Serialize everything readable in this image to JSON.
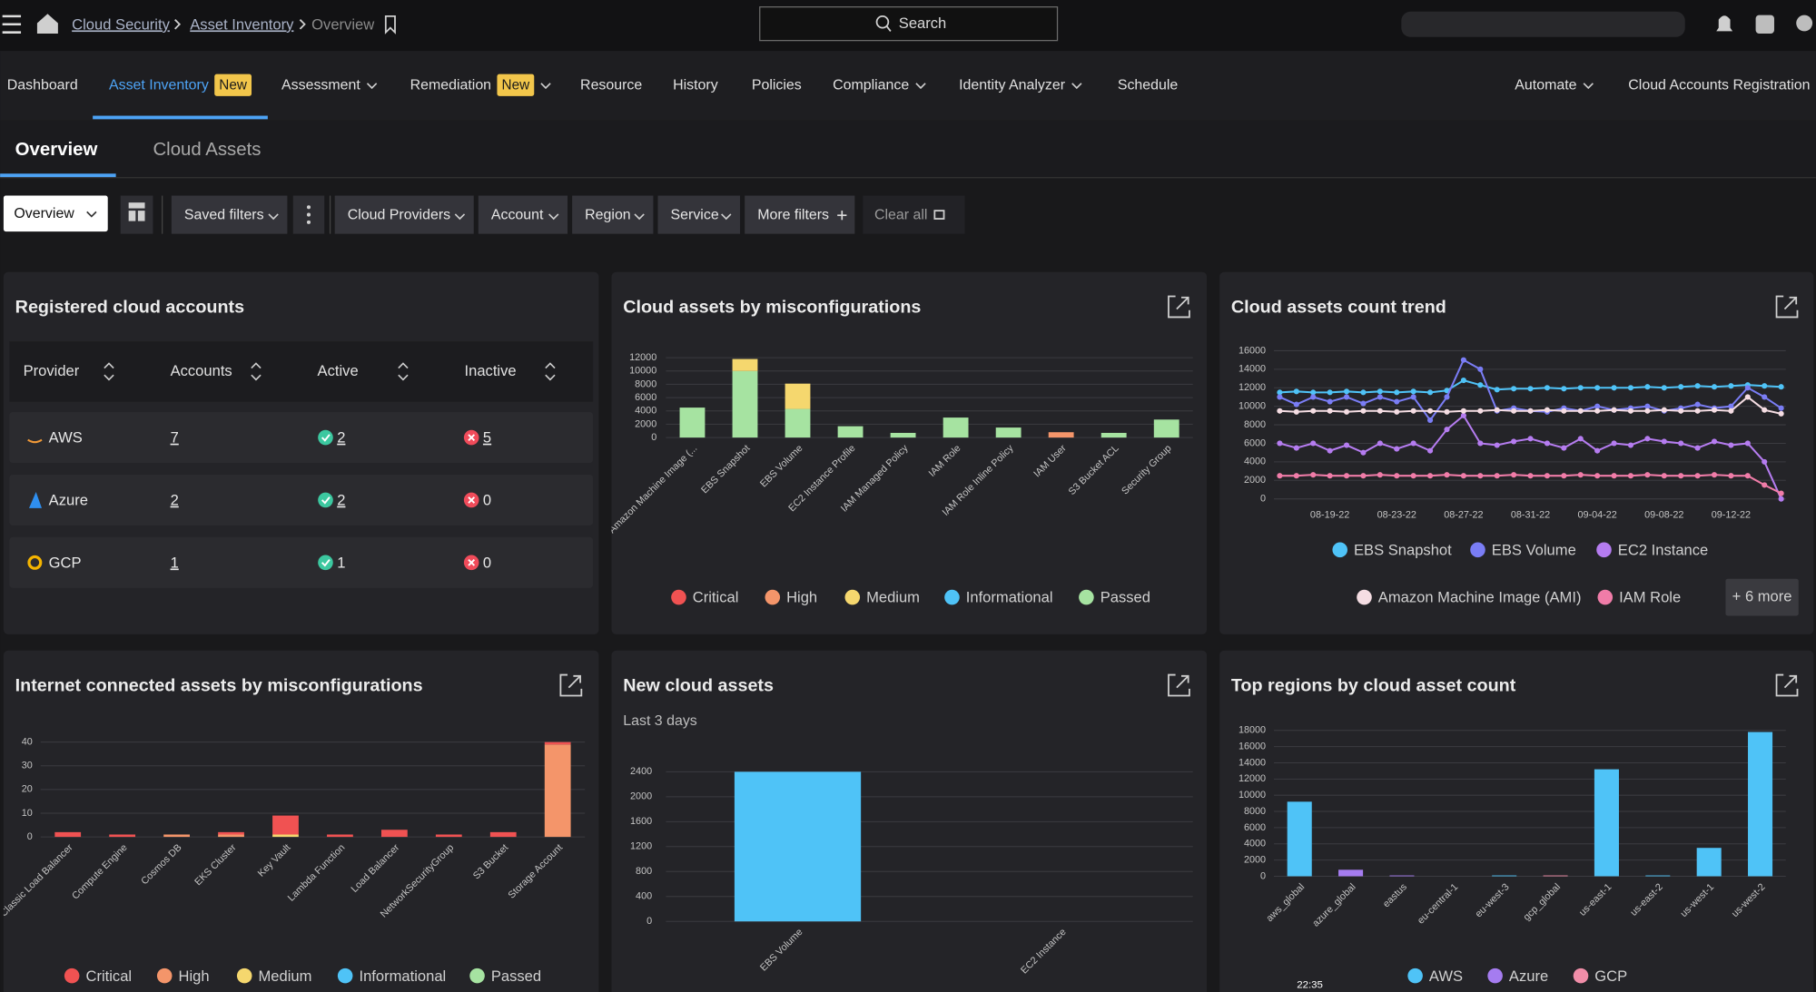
{
  "header": {
    "breadcrumb": [
      "Cloud Security",
      "Asset Inventory",
      "Overview"
    ],
    "search": "Search",
    "clock": "22:35"
  },
  "nav": {
    "items": [
      {
        "label": "Dashboard"
      },
      {
        "label": "Asset Inventory",
        "badge": "New",
        "active": true
      },
      {
        "label": "Assessment",
        "dropdown": true
      },
      {
        "label": "Remediation",
        "dropdown": true,
        "badge": "New"
      },
      {
        "label": "Resource"
      },
      {
        "label": "History"
      },
      {
        "label": "Policies"
      },
      {
        "label": "Compliance",
        "dropdown": true
      },
      {
        "label": "Identity Analyzer",
        "dropdown": true
      },
      {
        "label": "Schedule"
      },
      {
        "label": "Automate",
        "dropdown": true
      },
      {
        "label": "Cloud Accounts Registration"
      }
    ]
  },
  "subtabs": {
    "items": [
      "Overview",
      "Cloud Assets"
    ],
    "active": 0
  },
  "filters": {
    "view": "Overview",
    "items": [
      "Saved filters",
      "Cloud Providers",
      "Account",
      "Region",
      "Service",
      "More filters"
    ],
    "clear": "Clear all"
  },
  "accounts": {
    "title": "Registered cloud accounts",
    "columns": [
      "Provider",
      "Accounts",
      "Active",
      "Inactive"
    ],
    "rows": [
      [
        "AWS",
        7,
        2,
        5
      ],
      [
        "Azure",
        2,
        2,
        0
      ],
      [
        "GCP",
        1,
        1,
        0
      ]
    ]
  },
  "chart_data": [
    {
      "type": "bar",
      "stacked": true,
      "grid": true,
      "title": "Cloud assets by misconfigurations",
      "categories": [
        "Amazon Machine Image (...",
        "EBS Snapshot",
        "EBS Volume",
        "EC2 Instance Profile",
        "IAM Managed Policy",
        "IAM Role",
        "IAM Role Inline Policy",
        "IAM User",
        "S3 Bucket ACL",
        "Security Group"
      ],
      "ylim": [
        0,
        12000
      ],
      "yticks": [
        0,
        2000,
        4000,
        6000,
        8000,
        10000,
        12000
      ],
      "series": [
        {
          "name": "Critical",
          "color": "#f05252",
          "values": [
            0,
            0,
            0,
            0,
            0,
            0,
            0,
            0,
            0,
            0
          ]
        },
        {
          "name": "High",
          "color": "#f4956a",
          "values": [
            0,
            0,
            0,
            0,
            0,
            0,
            0,
            800,
            0,
            0
          ]
        },
        {
          "name": "Medium",
          "color": "#f5d76e",
          "values": [
            0,
            1800,
            3800,
            0,
            0,
            0,
            0,
            0,
            0,
            0
          ]
        },
        {
          "name": "Informational",
          "color": "#4fc3f7",
          "values": [
            0,
            0,
            0,
            0,
            0,
            0,
            0,
            0,
            0,
            0
          ]
        },
        {
          "name": "Passed",
          "color": "#a6e3a1",
          "values": [
            4500,
            10000,
            4300,
            1700,
            700,
            3000,
            1500,
            0,
            700,
            2700
          ]
        }
      ]
    },
    {
      "type": "line",
      "grid": true,
      "title": "Cloud assets count trend",
      "more_label": "+ 6 more",
      "categories": [
        null,
        null,
        null,
        "08-19-22",
        null,
        null,
        null,
        "08-23-22",
        null,
        null,
        null,
        "08-27-22",
        null,
        null,
        null,
        "08-31-22",
        null,
        null,
        null,
        "09-04-22",
        null,
        null,
        null,
        "09-08-22",
        null,
        null,
        null,
        "09-12-22",
        null,
        null,
        null
      ],
      "ylim": [
        0,
        16000
      ],
      "yticks": [
        0,
        2000,
        4000,
        6000,
        8000,
        10000,
        12000,
        14000,
        16000
      ],
      "series": [
        {
          "name": "EBS Snapshot",
          "color": "#4fc3f7",
          "values": [
            11500,
            11600,
            11500,
            11500,
            11600,
            11500,
            11600,
            11500,
            11600,
            11500,
            11700,
            12800,
            12300,
            11800,
            11900,
            11900,
            12000,
            11900,
            12000,
            12000,
            12000,
            12000,
            12100,
            12000,
            12100,
            12200,
            12100,
            12200,
            12300,
            12200,
            12100
          ]
        },
        {
          "name": "EBS Volume",
          "color": "#7a7df5",
          "values": [
            11000,
            10200,
            11000,
            10500,
            11000,
            10300,
            11000,
            10500,
            11000,
            8500,
            11000,
            15000,
            14000,
            9500,
            9800,
            9500,
            9400,
            9800,
            9500,
            10000,
            9600,
            9800,
            10000,
            9500,
            9800,
            10200,
            9800,
            10000,
            12000,
            11000,
            9800
          ]
        },
        {
          "name": "EC2 Instance",
          "color": "#b57cf0",
          "values": [
            6000,
            5500,
            6000,
            5200,
            5800,
            5000,
            6000,
            5400,
            6000,
            5200,
            7500,
            9000,
            6000,
            5800,
            6200,
            6500,
            6000,
            5500,
            6500,
            5200,
            6000,
            5800,
            6500,
            6200,
            6000,
            5500,
            6200,
            5800,
            6000,
            4000,
            0
          ]
        },
        {
          "name": "Amazon Machine Image (AMI)",
          "color": "#f5dde3",
          "values": [
            9500,
            9400,
            9500,
            9500,
            9400,
            9500,
            9500,
            9400,
            9500,
            9500,
            9400,
            9500,
            9500,
            9600,
            9500,
            9500,
            9600,
            9500,
            9500,
            9500,
            9600,
            9500,
            9500,
            9600,
            9500,
            9500,
            9600,
            9500,
            11000,
            9600,
            9200
          ]
        },
        {
          "name": "IAM Role",
          "color": "#f07ca8",
          "values": [
            2500,
            2500,
            2600,
            2500,
            2500,
            2500,
            2600,
            2500,
            2500,
            2500,
            2600,
            2500,
            2500,
            2500,
            2600,
            2500,
            2500,
            2500,
            2600,
            2500,
            2500,
            2500,
            2600,
            2500,
            2500,
            2500,
            2600,
            2500,
            2500,
            1500,
            600
          ]
        }
      ]
    },
    {
      "type": "bar",
      "stacked": true,
      "grid": true,
      "title": "Internet connected assets by misconfigurations",
      "categories": [
        "Classic Load Balancer",
        "Compute Engine",
        "Cosmos DB",
        "EKS Cluster",
        "Key Vault",
        "Lambda Function",
        "Load Balancer",
        "NetworkSecurityGroup",
        "S3 Bucket",
        "Storage Account"
      ],
      "ylim": [
        0,
        42
      ],
      "yticks": [
        0,
        10,
        20,
        30,
        40
      ],
      "series": [
        {
          "name": "Critical",
          "color": "#f05252",
          "values": [
            2,
            1,
            0,
            1,
            8,
            1,
            3,
            1,
            2,
            1
          ]
        },
        {
          "name": "High",
          "color": "#f4956a",
          "values": [
            0,
            0,
            1,
            1,
            0,
            0,
            0,
            0,
            0,
            39
          ]
        },
        {
          "name": "Medium",
          "color": "#f5d76e",
          "values": [
            0,
            0,
            0,
            0,
            1,
            0,
            0,
            0,
            0,
            0
          ]
        },
        {
          "name": "Informational",
          "color": "#4fc3f7",
          "values": [
            0,
            0,
            0,
            0,
            0,
            0,
            0,
            0,
            0,
            0
          ]
        },
        {
          "name": "Passed",
          "color": "#a6e3a1",
          "values": [
            0,
            0,
            0,
            0,
            0,
            0,
            0,
            0,
            0,
            0
          ]
        }
      ]
    },
    {
      "type": "bar",
      "stacked": false,
      "grid": true,
      "title": "New cloud assets",
      "subtitle": "Last 3 days",
      "categories": [
        "EBS Volume",
        "EC2 Instance"
      ],
      "ylim": [
        0,
        2600
      ],
      "yticks": [
        0,
        400,
        800,
        1200,
        1600,
        2000,
        2400
      ],
      "series": [
        {
          "color": "#4fc3f7",
          "values": [
            2400,
            0
          ]
        }
      ]
    },
    {
      "type": "bar",
      "stacked": true,
      "grid": true,
      "title": "Top regions by cloud asset count",
      "categories": [
        "aws_global",
        "azure_global",
        "eastus",
        "eu-central-1",
        "eu-west-3",
        "gcp_global",
        "us-east-1",
        "us-east-2",
        "us-west-1",
        "us-west-2"
      ],
      "ylim": [
        0,
        18000
      ],
      "yticks": [
        0,
        2000,
        4000,
        6000,
        8000,
        10000,
        12000,
        14000,
        16000,
        18000
      ],
      "series": [
        {
          "name": "AWS",
          "color": "#4fc3f7",
          "values": [
            9200,
            0,
            0,
            0,
            100,
            0,
            13200,
            100,
            3500,
            17800
          ]
        },
        {
          "name": "Azure",
          "color": "#a57cf0",
          "values": [
            0,
            800,
            100,
            0,
            0,
            0,
            0,
            0,
            0,
            0
          ]
        },
        {
          "name": "GCP",
          "color": "#f08da8",
          "values": [
            0,
            0,
            0,
            0,
            0,
            100,
            0,
            0,
            0,
            0
          ]
        }
      ]
    }
  ]
}
